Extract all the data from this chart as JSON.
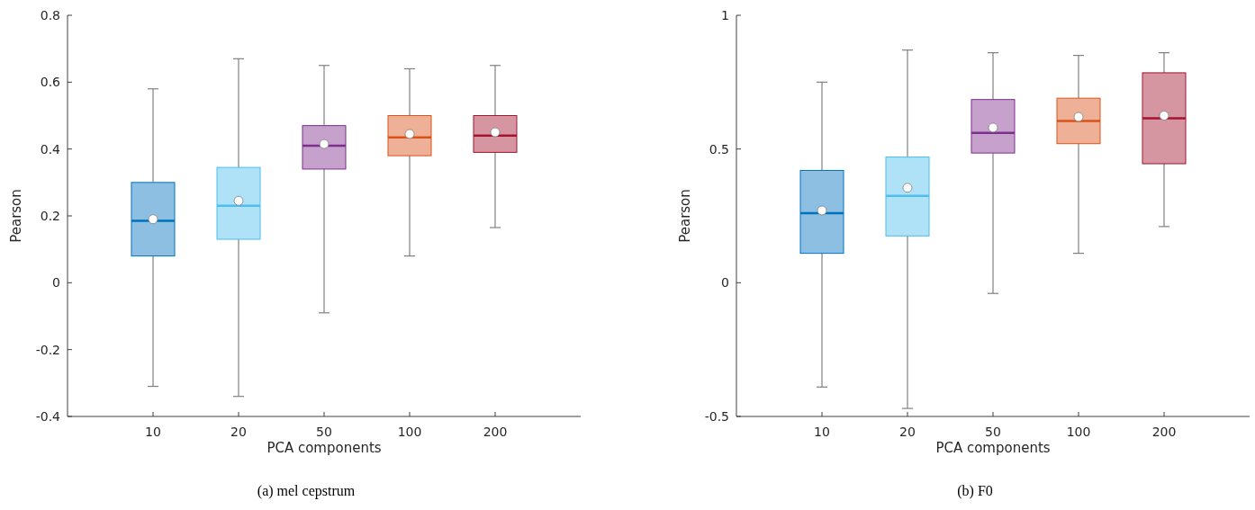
{
  "chart_data": [
    {
      "type": "box",
      "title": "(a)  mel cepstrum",
      "xlabel": "PCA components",
      "ylabel": "Pearson",
      "categories": [
        "10",
        "20",
        "50",
        "100",
        "200"
      ],
      "colors": [
        "#0072bd",
        "#4dbeee",
        "#7e2f8e",
        "#d95319",
        "#a2142f"
      ],
      "boxes": [
        {
          "low": -0.31,
          "q1": 0.08,
          "median": 0.185,
          "q3": 0.3,
          "high": 0.58,
          "mean": 0.19
        },
        {
          "low": -0.34,
          "q1": 0.13,
          "median": 0.23,
          "q3": 0.345,
          "high": 0.67,
          "mean": 0.245
        },
        {
          "low": -0.09,
          "q1": 0.34,
          "median": 0.41,
          "q3": 0.47,
          "high": 0.65,
          "mean": 0.415
        },
        {
          "low": 0.08,
          "q1": 0.38,
          "median": 0.435,
          "q3": 0.5,
          "high": 0.64,
          "mean": 0.445
        },
        {
          "low": 0.165,
          "q1": 0.39,
          "median": 0.44,
          "q3": 0.5,
          "high": 0.65,
          "mean": 0.45
        }
      ],
      "ylim": [
        -0.4,
        0.8
      ],
      "yticks": [
        -0.4,
        -0.2,
        0,
        0.2,
        0.4,
        0.6,
        0.8
      ],
      "grid": false
    },
    {
      "type": "box",
      "title": "(b)  F0",
      "xlabel": "PCA components",
      "ylabel": "Pearson",
      "categories": [
        "10",
        "20",
        "50",
        "100",
        "200"
      ],
      "colors": [
        "#0072bd",
        "#4dbeee",
        "#7e2f8e",
        "#d95319",
        "#a2142f"
      ],
      "boxes": [
        {
          "low": -0.39,
          "q1": 0.11,
          "median": 0.26,
          "q3": 0.42,
          "high": 0.75,
          "mean": 0.27
        },
        {
          "low": -0.47,
          "q1": 0.175,
          "median": 0.325,
          "q3": 0.47,
          "high": 0.87,
          "mean": 0.355
        },
        {
          "low": -0.04,
          "q1": 0.485,
          "median": 0.56,
          "q3": 0.685,
          "high": 0.86,
          "mean": 0.58
        },
        {
          "low": 0.11,
          "q1": 0.52,
          "median": 0.605,
          "q3": 0.69,
          "high": 0.85,
          "mean": 0.62
        },
        {
          "low": 0.21,
          "q1": 0.445,
          "median": 0.615,
          "q3": 0.785,
          "high": 0.86,
          "mean": 0.625
        }
      ],
      "ylim": [
        -0.5,
        1
      ],
      "yticks": [
        -0.5,
        0,
        0.5,
        1
      ],
      "grid": false
    }
  ]
}
